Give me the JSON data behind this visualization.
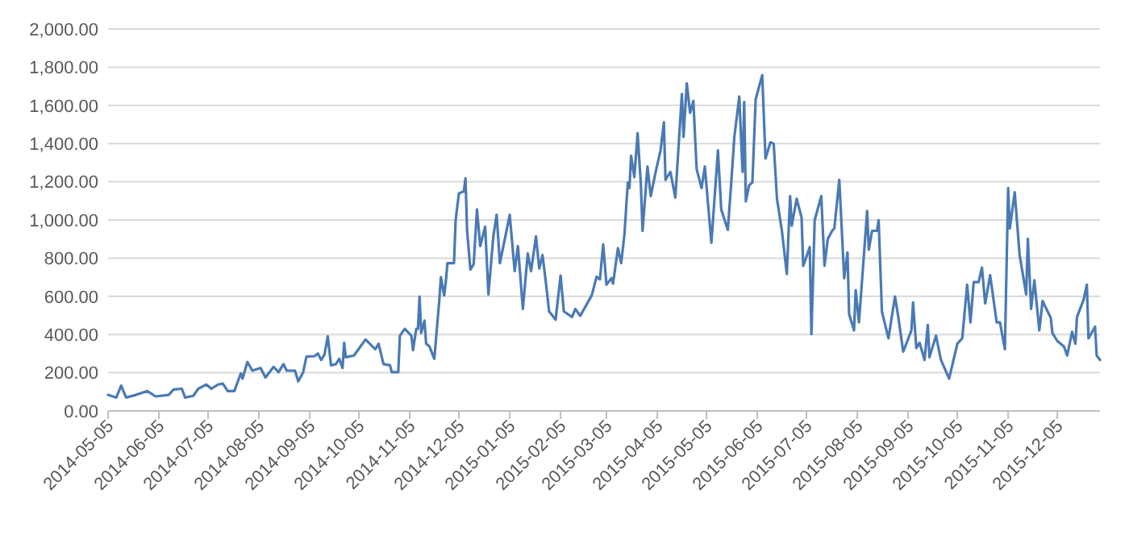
{
  "chart_data": {
    "type": "line",
    "xlim": [
      "2014-05-05",
      "2015-12-31"
    ],
    "xticks": [
      "2014-05-05",
      "2014-06-05",
      "2014-07-05",
      "2014-08-05",
      "2014-09-05",
      "2014-10-05",
      "2014-11-05",
      "2014-12-05",
      "2015-01-05",
      "2015-02-05",
      "2015-03-05",
      "2015-04-05",
      "2015-05-05",
      "2015-06-05",
      "2015-07-05",
      "2015-08-05",
      "2015-09-05",
      "2015-10-05",
      "2015-11-05",
      "2015-12-05"
    ],
    "ylim": [
      0,
      2000
    ],
    "yticks": [
      {
        "value": 0,
        "label": "0.00"
      },
      {
        "value": 200,
        "label": "200.00"
      },
      {
        "value": 400,
        "label": "400.00"
      },
      {
        "value": 600,
        "label": "600.00"
      },
      {
        "value": 800,
        "label": "800.00"
      },
      {
        "value": 1000,
        "label": "1,000.00"
      },
      {
        "value": 1200,
        "label": "1,200.00"
      },
      {
        "value": 1400,
        "label": "1,400.00"
      },
      {
        "value": 1600,
        "label": "1,600.00"
      },
      {
        "value": 1800,
        "label": "1,800.00"
      },
      {
        "value": 2000,
        "label": "2,000.00"
      }
    ],
    "grid": "y",
    "marker": "none",
    "line_style": "solid",
    "series": [
      {
        "color": "#4a7ab5",
        "x": [
          "2014-05-05",
          "2014-05-10",
          "2014-05-13",
          "2014-05-16",
          "2014-05-22",
          "2014-05-29",
          "2014-06-03",
          "2014-06-11",
          "2014-06-14",
          "2014-06-19",
          "2014-06-21",
          "2014-06-26",
          "2014-06-29",
          "2014-07-04",
          "2014-07-07",
          "2014-07-11",
          "2014-07-14",
          "2014-07-17",
          "2014-07-21",
          "2014-07-25",
          "2014-07-26",
          "2014-07-29",
          "2014-08-01",
          "2014-08-06",
          "2014-08-09",
          "2014-08-14",
          "2014-08-17",
          "2014-08-20",
          "2014-08-22",
          "2014-08-27",
          "2014-08-29",
          "2014-09-01",
          "2014-09-03",
          "2014-09-08",
          "2014-09-10",
          "2014-09-12",
          "2014-09-14",
          "2014-09-16",
          "2014-09-18",
          "2014-09-21",
          "2014-09-23",
          "2014-09-25",
          "2014-09-26",
          "2014-09-27",
          "2014-10-02",
          "2014-10-09",
          "2014-10-15",
          "2014-10-17",
          "2014-10-20",
          "2014-10-24",
          "2014-10-25",
          "2014-10-29",
          "2014-10-30",
          "2014-11-02",
          "2014-11-06",
          "2014-11-07",
          "2014-11-09",
          "2014-11-10",
          "2014-11-11",
          "2014-11-12",
          "2014-11-14",
          "2014-11-15",
          "2014-11-17",
          "2014-11-20",
          "2014-11-23",
          "2014-11-24",
          "2014-11-26",
          "2014-11-27",
          "2014-11-28",
          "2014-12-02",
          "2014-12-03",
          "2014-12-05",
          "2014-12-08",
          "2014-12-09",
          "2014-12-10",
          "2014-12-12",
          "2014-12-14",
          "2014-12-16",
          "2014-12-18",
          "2014-12-21",
          "2014-12-23",
          "2014-12-26",
          "2014-12-28",
          "2014-12-30",
          "2015-01-05",
          "2015-01-08",
          "2015-01-10",
          "2015-01-13",
          "2015-01-16",
          "2015-01-18",
          "2015-01-21",
          "2015-01-23",
          "2015-01-25",
          "2015-01-27",
          "2015-01-29",
          "2015-02-02",
          "2015-02-05",
          "2015-02-07",
          "2015-02-12",
          "2015-02-14",
          "2015-02-17",
          "2015-02-24",
          "2015-02-27",
          "2015-03-01",
          "2015-03-03",
          "2015-03-05",
          "2015-03-08",
          "2015-03-09",
          "2015-03-12",
          "2015-03-14",
          "2015-03-16",
          "2015-03-18",
          "2015-03-19",
          "2015-03-20",
          "2015-03-22",
          "2015-03-24",
          "2015-03-26",
          "2015-03-27",
          "2015-03-30",
          "2015-04-01",
          "2015-04-04",
          "2015-04-07",
          "2015-04-09",
          "2015-04-10",
          "2015-04-13",
          "2015-04-16",
          "2015-04-20",
          "2015-04-21",
          "2015-04-23",
          "2015-04-25",
          "2015-04-27",
          "2015-04-29",
          "2015-05-02",
          "2015-05-04",
          "2015-05-08",
          "2015-05-12",
          "2015-05-14",
          "2015-05-18",
          "2015-05-20",
          "2015-05-22",
          "2015-05-25",
          "2015-05-27",
          "2015-05-28",
          "2015-05-29",
          "2015-05-31",
          "2015-06-02",
          "2015-06-04",
          "2015-06-08",
          "2015-06-10",
          "2015-06-13",
          "2015-06-15",
          "2015-06-17",
          "2015-06-20",
          "2015-06-23",
          "2015-06-25",
          "2015-06-26",
          "2015-06-29",
          "2015-07-02",
          "2015-07-03",
          "2015-07-07",
          "2015-07-08",
          "2015-07-10",
          "2015-07-14",
          "2015-07-16",
          "2015-07-18",
          "2015-07-21",
          "2015-07-22",
          "2015-07-25",
          "2015-07-28",
          "2015-07-30",
          "2015-07-31",
          "2015-08-03",
          "2015-08-04",
          "2015-08-06",
          "2015-08-11",
          "2015-08-12",
          "2015-08-14",
          "2015-08-17",
          "2015-08-18",
          "2015-08-20",
          "2015-08-24",
          "2015-08-26",
          "2015-08-28",
          "2015-08-30",
          "2015-09-02",
          "2015-09-07",
          "2015-09-08",
          "2015-09-10",
          "2015-09-12",
          "2015-09-15",
          "2015-09-17",
          "2015-09-18",
          "2015-09-22",
          "2015-09-25",
          "2015-09-30",
          "2015-10-05",
          "2015-10-08",
          "2015-10-11",
          "2015-10-13",
          "2015-10-15",
          "2015-10-18",
          "2015-10-20",
          "2015-10-22",
          "2015-10-25",
          "2015-10-29",
          "2015-10-31",
          "2015-11-03",
          "2015-11-05",
          "2015-11-06",
          "2015-11-09",
          "2015-11-12",
          "2015-11-16",
          "2015-11-17",
          "2015-11-19",
          "2015-11-21",
          "2015-11-24",
          "2015-11-26",
          "2015-12-01",
          "2015-12-02",
          "2015-12-05",
          "2015-12-09",
          "2015-12-11",
          "2015-12-14",
          "2015-12-16",
          "2015-12-17",
          "2015-12-21",
          "2015-12-23",
          "2015-12-24",
          "2015-12-28",
          "2015-12-29",
          "2015-12-31"
        ],
        "values": [
          84,
          70,
          132,
          70,
          84,
          104,
          76,
          84,
          112,
          116,
          70,
          79,
          116,
          138,
          116,
          138,
          143,
          104,
          104,
          197,
          169,
          256,
          211,
          225,
          175,
          231,
          203,
          245,
          211,
          211,
          155,
          203,
          284,
          287,
          301,
          267,
          295,
          391,
          239,
          245,
          273,
          225,
          357,
          281,
          290,
          374,
          323,
          352,
          245,
          239,
          203,
          203,
          394,
          430,
          394,
          318,
          430,
          430,
          599,
          408,
          473,
          352,
          338,
          273,
          576,
          700,
          605,
          675,
          774,
          774,
          999,
          1139,
          1150,
          1218,
          943,
          740,
          768,
          1055,
          863,
          965,
          610,
          914,
          1027,
          774,
          1027,
          732,
          863,
          534,
          824,
          732,
          914,
          745,
          816,
          675,
          521,
          478,
          709,
          521,
          492,
          534,
          498,
          605,
          703,
          689,
          872,
          661,
          695,
          667,
          852,
          774,
          928,
          1196,
          1167,
          1336,
          1224,
          1454,
          1182,
          943,
          1280,
          1125,
          1252,
          1365,
          1511,
          1210,
          1252,
          1117,
          1660,
          1435,
          1716,
          1561,
          1623,
          1266,
          1167,
          1280,
          880,
          1365,
          1055,
          948,
          1182,
          1435,
          1646,
          1252,
          1618,
          1097,
          1182,
          1196,
          1632,
          1758,
          1322,
          1407,
          1398,
          1111,
          943,
          717,
          1125,
          970,
          1111,
          1013,
          760,
          858,
          402,
          999,
          1125,
          760,
          901,
          948,
          956,
          1210,
          695,
          830,
          506,
          422,
          633,
          464,
          1047,
          844,
          943,
          943,
          999,
          521,
          380,
          492,
          599,
          492,
          310,
          422,
          568,
          329,
          357,
          267,
          450,
          281,
          394,
          267,
          169,
          352,
          380,
          661,
          464,
          675,
          675,
          751,
          563,
          711,
          464,
          464,
          323,
          1167,
          956,
          1145,
          816,
          610,
          901,
          534,
          684,
          422,
          576,
          487,
          408,
          366,
          338,
          290,
          414,
          352,
          492,
          582,
          661,
          380,
          441,
          290,
          267
        ]
      }
    ]
  }
}
